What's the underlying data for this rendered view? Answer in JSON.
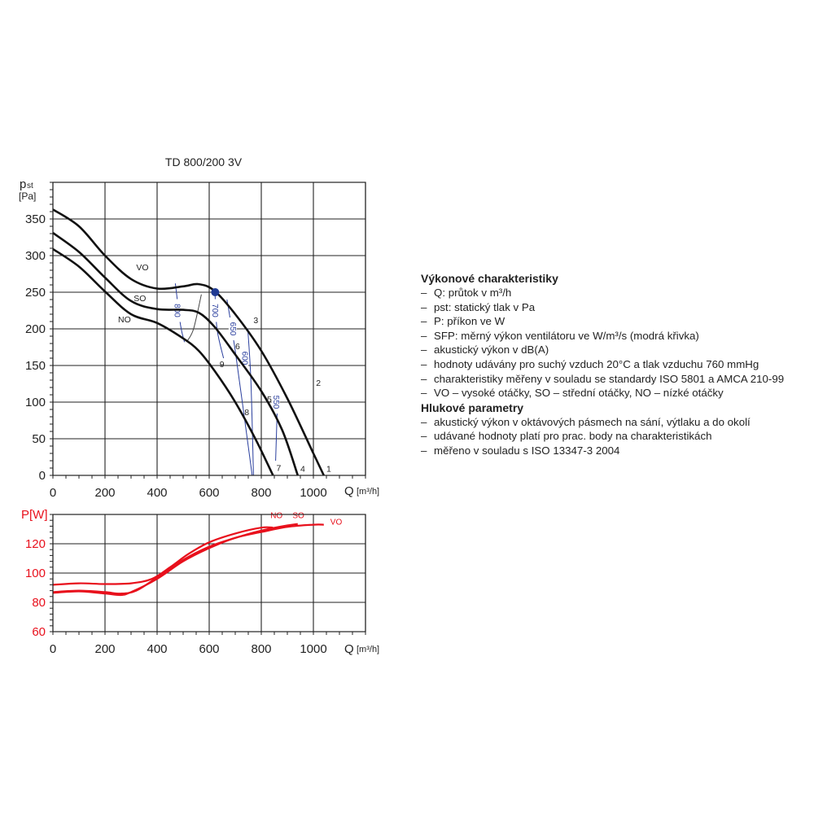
{
  "chart_title": "TD 800/200 3V",
  "colors": {
    "pressure_curve": "#111111",
    "sfp_curve": "#2a3f9e",
    "sfp_point": "#1f3a93",
    "power_curve": "#e8101c",
    "power_axis_label": "#e8101c",
    "grid": "#222222"
  },
  "chart_data": [
    {
      "type": "line",
      "title": "TD 800/200 3V",
      "xlabel": "Q [m³/h]",
      "ylabel": "pst [Pa]",
      "ylabel_main": "p",
      "ylabel_sub": "st",
      "ylabel_unit": "[Pa]",
      "xlim": [
        0,
        1200
      ],
      "ylim": [
        0,
        400
      ],
      "x_ticks": [
        0,
        200,
        400,
        600,
        800,
        1000
      ],
      "y_ticks": [
        0,
        50,
        100,
        150,
        200,
        250,
        300,
        350
      ],
      "grid": true,
      "series": [
        {
          "name": "VO",
          "label_pos": [
            320,
            280
          ],
          "points": [
            [
              0,
              363
            ],
            [
              100,
              340
            ],
            [
              200,
              300
            ],
            [
              300,
              268
            ],
            [
              400,
              255
            ],
            [
              500,
              258
            ],
            [
              560,
              261
            ],
            [
              620,
              252
            ],
            [
              700,
              220
            ],
            [
              800,
              170
            ],
            [
              900,
              105
            ],
            [
              1000,
              30
            ],
            [
              1040,
              0
            ]
          ]
        },
        {
          "name": "SO",
          "label_pos": [
            310,
            238
          ],
          "points": [
            [
              0,
              331
            ],
            [
              100,
              305
            ],
            [
              200,
              270
            ],
            [
              300,
              238
            ],
            [
              400,
              227
            ],
            [
              500,
              226
            ],
            [
              560,
              222
            ],
            [
              620,
              203
            ],
            [
              700,
              165
            ],
            [
              800,
              115
            ],
            [
              880,
              62
            ],
            [
              940,
              0
            ]
          ]
        },
        {
          "name": "NO",
          "label_pos": [
            250,
            209
          ],
          "points": [
            [
              0,
              309
            ],
            [
              100,
              285
            ],
            [
              200,
              251
            ],
            [
              300,
              220
            ],
            [
              400,
              208
            ],
            [
              500,
              187
            ],
            [
              560,
              170
            ],
            [
              620,
              143
            ],
            [
              700,
              100
            ],
            [
              780,
              48
            ],
            [
              845,
              0
            ]
          ]
        }
      ],
      "sfp_curves": [
        {
          "label": "800",
          "label_pos": [
            475,
            225
          ],
          "points": [
            [
              470,
              262
            ],
            [
              490,
              205
            ],
            [
              505,
              182
            ]
          ]
        },
        {
          "label": "700",
          "label_pos": [
            620,
            225
          ],
          "points": [
            [
              622,
              252
            ],
            [
              630,
              200
            ],
            [
              655,
              160
            ]
          ]
        },
        {
          "label": "650",
          "label_pos": [
            690,
            200
          ],
          "points": [
            [
              668,
              240
            ],
            [
              700,
              170
            ],
            [
              765,
              0
            ]
          ]
        },
        {
          "label": "600",
          "label_pos": [
            735,
            160
          ],
          "points": [
            [
              748,
              200
            ],
            [
              760,
              130
            ],
            [
              770,
              0
            ]
          ]
        },
        {
          "label": "550",
          "label_pos": [
            855,
            100
          ],
          "points": [
            [
              862,
              100
            ],
            [
              855,
              20
            ]
          ]
        }
      ],
      "sfp_connector": {
        "points": [
          [
            515,
            183
          ],
          [
            540,
            200
          ],
          [
            570,
            247
          ]
        ]
      },
      "operating_point": {
        "q": 623,
        "p": 250
      },
      "point_labels": [
        {
          "n": "1",
          "q": 1050,
          "p": 5
        },
        {
          "n": "2",
          "q": 1010,
          "p": 122
        },
        {
          "n": "3",
          "q": 770,
          "p": 208
        },
        {
          "n": "4",
          "q": 950,
          "p": 5
        },
        {
          "n": "5",
          "q": 822,
          "p": 100
        },
        {
          "n": "6",
          "q": 700,
          "p": 172
        },
        {
          "n": "7",
          "q": 858,
          "p": 6
        },
        {
          "n": "8",
          "q": 735,
          "p": 82
        },
        {
          "n": "9",
          "q": 640,
          "p": 148
        }
      ]
    },
    {
      "type": "line",
      "title": "",
      "xlabel": "Q [m³/h]",
      "ylabel": "P[W]",
      "xlim": [
        0,
        1200
      ],
      "ylim": [
        60,
        140
      ],
      "x_ticks": [
        0,
        200,
        400,
        600,
        800,
        1000
      ],
      "y_ticks": [
        60,
        80,
        100,
        120
      ],
      "grid": true,
      "series": [
        {
          "name": "NO",
          "label_pos": [
            835,
            137.5
          ],
          "points": [
            [
              0,
              92
            ],
            [
              100,
              93
            ],
            [
              200,
              92.5
            ],
            [
              300,
              93
            ],
            [
              380,
              96
            ],
            [
              450,
              104
            ],
            [
              520,
              113
            ],
            [
              600,
              121
            ],
            [
              700,
              127
            ],
            [
              800,
              131
            ],
            [
              845,
              131
            ]
          ]
        },
        {
          "name": "SO",
          "label_pos": [
            920,
            137.5
          ],
          "points": [
            [
              0,
              87
            ],
            [
              100,
              88
            ],
            [
              200,
              87
            ],
            [
              260,
              86
            ],
            [
              320,
              88
            ],
            [
              400,
              97
            ],
            [
              500,
              109
            ],
            [
              600,
              118
            ],
            [
              700,
              124
            ],
            [
              800,
              129
            ],
            [
              900,
              132.5
            ],
            [
              940,
              133.5
            ]
          ]
        },
        {
          "name": "VO",
          "label_pos": [
            1065,
            133
          ],
          "points": [
            [
              0,
              86.5
            ],
            [
              100,
              87.5
            ],
            [
              200,
              86
            ],
            [
              260,
              85
            ],
            [
              300,
              87
            ],
            [
              400,
              96
            ],
            [
              500,
              108
            ],
            [
              600,
              117
            ],
            [
              700,
              124
            ],
            [
              800,
              128
            ],
            [
              900,
              131.5
            ],
            [
              1000,
              133
            ],
            [
              1040,
              133
            ]
          ]
        }
      ]
    }
  ],
  "axis_labels": {
    "q_symbol": "Q",
    "q_unit": "[m³/h]",
    "p_power_label": "P[W]"
  },
  "legend": {
    "section1_title": "Výkonové charakteristiky",
    "section1_items": [
      "Q: průtok v m³/h",
      "pst: statický tlak v Pa",
      "P: příkon ve W",
      "SFP: měrný výkon ventilátoru ve W/m³/s (modrá křivka)",
      "akustický výkon v dB(A)",
      "hodnoty udávány pro suchý vzduch 20°C a tlak vzduchu 760 mmHg",
      "charakteristiky měřeny v souladu se standardy ISO 5801 a AMCA 210-99",
      "VO – vysoké otáčky, SO – střední otáčky, NO – nízké otáčky"
    ],
    "section2_title": "Hlukové parametry",
    "section2_items": [
      "akustický výkon v oktávových pásmech na sání, výtlaku a do okolí",
      "udávané hodnoty platí pro prac. body na charakteristikách",
      "měřeno v souladu s ISO 13347-3 2004"
    ]
  }
}
